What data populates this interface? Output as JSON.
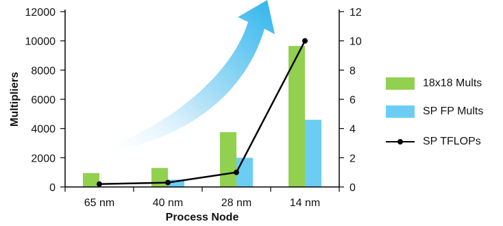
{
  "chart_data": {
    "type": "bar",
    "categories": [
      "65 nm",
      "40 nm",
      "28 nm",
      "14 nm"
    ],
    "series": [
      {
        "name": "18x18 Mults",
        "axis": "left",
        "kind": "bar",
        "color": "#92d050",
        "values": [
          950,
          1300,
          3750,
          9650
        ]
      },
      {
        "name": "SP FP Mults",
        "axis": "left",
        "kind": "bar",
        "color": "#6ccdf4",
        "values": [
          0,
          500,
          2000,
          4600
        ]
      },
      {
        "name": "SP TFLOPs",
        "axis": "right",
        "kind": "line",
        "color": "#000000",
        "values": [
          0.2,
          0.3,
          1.0,
          10.0
        ]
      }
    ],
    "xlabel": "Process Node",
    "ylabel": "Multipliers",
    "ylim": [
      0,
      12000
    ],
    "yticks": [
      "0",
      "2000",
      "4000",
      "6000",
      "8000",
      "10000",
      "12000"
    ],
    "y2lim": [
      0,
      12
    ],
    "y2ticks": [
      "0",
      "2",
      "4",
      "6",
      "8",
      "10",
      "12"
    ],
    "grid": false,
    "legend_position": "right",
    "arrow_color": "#3bb8ec"
  }
}
